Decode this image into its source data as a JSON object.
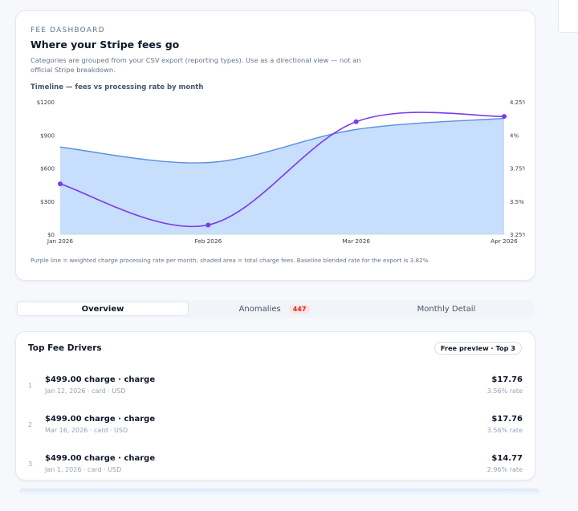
{
  "dashboard": {
    "eyebrow": "FEE DASHBOARD",
    "title": "Where your Stripe fees go",
    "description": "Categories are grouped from your CSV export (reporting types). Use as a directional view — not an official Stripe breakdown.",
    "chart_title": "Timeline — fees vs processing rate by month",
    "footnote": "Purple line = weighted charge processing rate per month; shaded area = total charge fees. Baseline blended rate for the export is 3.82%."
  },
  "chart_data": {
    "type": "area",
    "categories": [
      "Jan 2026",
      "Feb 2026",
      "Mar 2026",
      "Apr 2026"
    ],
    "left_axis": {
      "ticks": [
        "$0",
        "$300",
        "$600",
        "$900",
        "$1200"
      ],
      "range": [
        0,
        1200
      ]
    },
    "right_axis": {
      "ticks": [
        "3.25%",
        "3.5%",
        "3.75%",
        "4%",
        "4.25%"
      ],
      "range": [
        3.25,
        4.25
      ]
    },
    "series": [
      {
        "kind": "area",
        "axis": "left",
        "values": [
          790,
          650,
          950,
          1050
        ],
        "color": "#c7defc",
        "stroke": "#5b8fe0"
      },
      {
        "kind": "line",
        "axis": "right",
        "values": [
          3.63,
          3.32,
          4.1,
          4.14
        ],
        "color": "#7c3aed"
      }
    ],
    "grid": false
  },
  "tabs": [
    {
      "label": "Overview",
      "active": true
    },
    {
      "label": "Anomalies",
      "badge": "447"
    },
    {
      "label": "Monthly Detail"
    }
  ],
  "drivers": {
    "title": "Top Fee Drivers",
    "pill": "Free preview · Top 3",
    "rows": [
      {
        "rank": "1",
        "title": "$499.00 charge · charge",
        "sub": "Jan 12, 2026 · card · USD",
        "amount": "$17.76",
        "rate": "3.56% rate"
      },
      {
        "rank": "2",
        "title": "$499.00 charge · charge",
        "sub": "Mar 16, 2026 · card · USD",
        "amount": "$17.76",
        "rate": "3.56% rate"
      },
      {
        "rank": "3",
        "title": "$499.00 charge · charge",
        "sub": "Jan 1, 2026 · card · USD",
        "amount": "$14.77",
        "rate": "2.96% rate"
      }
    ]
  }
}
